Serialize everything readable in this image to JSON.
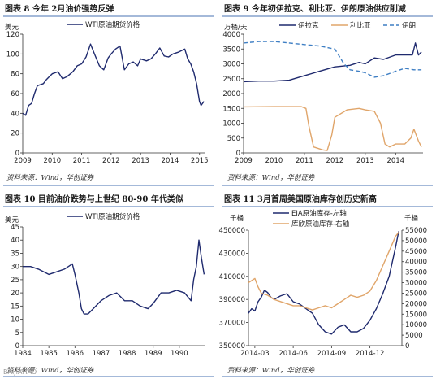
{
  "watermark": "BAIJIAHAO",
  "chart_data": [
    {
      "type": "line",
      "title": "图表 8   今年 2月油价强势反弹",
      "source": "资料来源：Wind，华创证券",
      "yunit": "美元",
      "ylim": [
        0,
        120
      ],
      "yticks": [
        0,
        20,
        40,
        60,
        80,
        100,
        120
      ],
      "xlim": [
        2009,
        2015.2
      ],
      "xticks": [
        2009,
        2010,
        2011,
        2012,
        2013,
        2014,
        2015
      ],
      "xtick_labels": [
        "2009",
        "2010",
        "2011",
        "2012",
        "2013",
        "2014",
        "2015"
      ],
      "colors": {
        "navy": "#1f2a6e"
      },
      "series": [
        {
          "name": "WTI原油期货价格",
          "color": "navy",
          "x": [
            2009.0,
            2009.1,
            2009.2,
            2009.3,
            2009.4,
            2009.5,
            2009.6,
            2009.7,
            2009.8,
            2009.9,
            2010.0,
            2010.2,
            2010.35,
            2010.5,
            2010.7,
            2010.85,
            2011.0,
            2011.15,
            2011.3,
            2011.45,
            2011.6,
            2011.75,
            2011.9,
            2012.0,
            2012.15,
            2012.3,
            2012.45,
            2012.6,
            2012.75,
            2012.9,
            2013.0,
            2013.2,
            2013.35,
            2013.5,
            2013.65,
            2013.8,
            2013.95,
            2014.1,
            2014.3,
            2014.5,
            2014.6,
            2014.7,
            2014.8,
            2014.9,
            2015.0,
            2015.05,
            2015.1,
            2015.15
          ],
          "values": [
            40,
            38,
            48,
            50,
            60,
            68,
            69,
            70,
            74,
            77,
            80,
            82,
            75,
            77,
            82,
            88,
            90,
            97,
            110,
            99,
            88,
            84,
            96,
            100,
            105,
            108,
            84,
            90,
            92,
            88,
            95,
            93,
            95,
            100,
            106,
            98,
            97,
            100,
            102,
            105,
            95,
            90,
            82,
            70,
            52,
            48,
            50,
            52
          ]
        }
      ]
    },
    {
      "type": "line",
      "title": "图表 9   今年初伊拉克、利比亚、伊朗原油供应削减",
      "source": "资料来源：Wind，华创证券",
      "yunit": "万桶/天",
      "ylim": [
        0,
        4000
      ],
      "yticks": [
        0,
        500,
        1000,
        1500,
        2000,
        2500,
        3000,
        3500,
        4000
      ],
      "xlim": [
        2009,
        2014.9
      ],
      "xticks": [
        2009,
        2010,
        2011,
        2012,
        2013,
        2014
      ],
      "xtick_labels": [
        "2009",
        "2010",
        "2011",
        "2012",
        "2013",
        "2014"
      ],
      "colors": {
        "navy": "#1f2a6e",
        "orange": "#e0a56a",
        "blue": "#3f7fc4"
      },
      "series": [
        {
          "name": "伊拉克",
          "color": "navy",
          "x": [
            2009.0,
            2009.5,
            2010.0,
            2010.5,
            2011.0,
            2011.5,
            2012.0,
            2012.5,
            2012.8,
            2013.0,
            2013.3,
            2013.6,
            2014.0,
            2014.3,
            2014.55,
            2014.65,
            2014.75,
            2014.85
          ],
          "values": [
            2400,
            2420,
            2420,
            2450,
            2600,
            2750,
            2900,
            2950,
            3050,
            3000,
            3200,
            3150,
            3300,
            3300,
            3300,
            3700,
            3300,
            3400
          ]
        },
        {
          "name": "利比亚",
          "color": "orange",
          "x": [
            2009.0,
            2010.0,
            2010.9,
            2011.05,
            2011.15,
            2011.3,
            2011.6,
            2011.75,
            2011.9,
            2012.0,
            2012.4,
            2012.8,
            2013.0,
            2013.3,
            2013.5,
            2013.65,
            2013.8,
            2014.0,
            2014.3,
            2014.5,
            2014.6,
            2014.75,
            2014.85
          ],
          "values": [
            1550,
            1560,
            1560,
            1500,
            900,
            200,
            100,
            80,
            600,
            1200,
            1450,
            1500,
            1450,
            1400,
            1000,
            300,
            200,
            300,
            300,
            500,
            800,
            400,
            200
          ]
        },
        {
          "name": "伊朗",
          "color": "blue",
          "dashed": true,
          "x": [
            2009.0,
            2009.5,
            2010.0,
            2010.5,
            2011.0,
            2011.5,
            2012.0,
            2012.3,
            2012.5,
            2012.8,
            2013.0,
            2013.3,
            2013.6,
            2014.0,
            2014.3,
            2014.6,
            2014.85
          ],
          "values": [
            3700,
            3750,
            3750,
            3700,
            3650,
            3600,
            3500,
            3000,
            2800,
            2750,
            2700,
            2550,
            2600,
            2750,
            2850,
            2800,
            2800
          ]
        }
      ]
    },
    {
      "type": "line",
      "title": "图表 10   目前油价跌势与上世纪 80-90 年代类似",
      "source": "资料来源：Wind，华创证券",
      "yunit": "美元",
      "ylim": [
        0,
        45
      ],
      "yticks": [
        0,
        5,
        10,
        15,
        20,
        25,
        30,
        35,
        40,
        45
      ],
      "xlim": [
        1984,
        1991
      ],
      "xticks": [
        1984,
        1985,
        1986,
        1987,
        1988,
        1989,
        1990
      ],
      "xtick_labels": [
        "1984",
        "1985",
        "1986",
        "1987",
        "1988",
        "1989",
        "1990"
      ],
      "colors": {
        "navy": "#1f2a6e"
      },
      "series": [
        {
          "name": "WTI原油期货价格",
          "color": "navy",
          "x": [
            1984.0,
            1984.3,
            1984.6,
            1985.0,
            1985.3,
            1985.6,
            1985.9,
            1986.0,
            1986.15,
            1986.25,
            1986.35,
            1986.5,
            1986.7,
            1987.0,
            1987.3,
            1987.6,
            1987.9,
            1988.2,
            1988.5,
            1988.8,
            1989.0,
            1989.3,
            1989.6,
            1989.9,
            1990.2,
            1990.45,
            1990.55,
            1990.65,
            1990.75,
            1990.85,
            1990.95
          ],
          "values": [
            30,
            30,
            29,
            27,
            28,
            29,
            31,
            27,
            20,
            14,
            12,
            12,
            14,
            17,
            19,
            20,
            17,
            17,
            15,
            14,
            16,
            20,
            20,
            21,
            20,
            17,
            25,
            30,
            40,
            33,
            27
          ]
        }
      ]
    },
    {
      "type": "line",
      "title": "图表 11   3月首周美国原油库存创历史新高",
      "source": "资料来源：Wind，华创证券",
      "yunit": "千桶",
      "yunit_right": "千桶",
      "ylim": [
        350000,
        450000
      ],
      "yticks": [
        350000,
        370000,
        390000,
        410000,
        430000,
        450000
      ],
      "ylim_right": [
        0,
        55000
      ],
      "yticks_right": [
        0,
        5000,
        10000,
        15000,
        20000,
        25000,
        30000,
        35000,
        40000,
        45000,
        50000,
        55000
      ],
      "xlim": [
        0,
        24
      ],
      "xticks": [
        1,
        7,
        13,
        19
      ],
      "xtick_labels": [
        "2014-03",
        "2014-06",
        "2014-09",
        "2014-12"
      ],
      "colors": {
        "navy": "#1f2a6e",
        "orange": "#e0a56a"
      },
      "series": [
        {
          "name": "EIA原油库存-左轴",
          "color": "navy",
          "axis": "left",
          "x": [
            0,
            0.5,
            1,
            1.5,
            2,
            2.5,
            3,
            3.5,
            4,
            5,
            6,
            7,
            8,
            9,
            10,
            11,
            12,
            13,
            14,
            15,
            16,
            17,
            18,
            19,
            20,
            21,
            22,
            23,
            23.5
          ],
          "values": [
            378000,
            382000,
            380000,
            388000,
            392000,
            398000,
            396000,
            392000,
            390000,
            393000,
            395000,
            388000,
            386000,
            382000,
            378000,
            368000,
            362000,
            360000,
            366000,
            368000,
            362000,
            362000,
            365000,
            372000,
            382000,
            395000,
            410000,
            435000,
            449000
          ]
        },
        {
          "name": "库欣原油库存-右轴",
          "color": "orange",
          "axis": "right",
          "x": [
            0,
            0.5,
            1,
            1.5,
            2,
            3,
            4,
            5,
            6,
            7,
            8,
            9,
            10,
            11,
            12,
            13,
            14,
            15,
            16,
            17,
            18,
            19,
            20,
            21,
            22,
            23,
            23.5
          ],
          "values": [
            30000,
            31000,
            32000,
            28000,
            25000,
            24000,
            22000,
            21000,
            20000,
            19000,
            19000,
            18000,
            17000,
            18000,
            19000,
            18000,
            20000,
            22000,
            24000,
            23000,
            24000,
            26000,
            31000,
            38000,
            45000,
            52000,
            54000
          ]
        }
      ]
    }
  ]
}
